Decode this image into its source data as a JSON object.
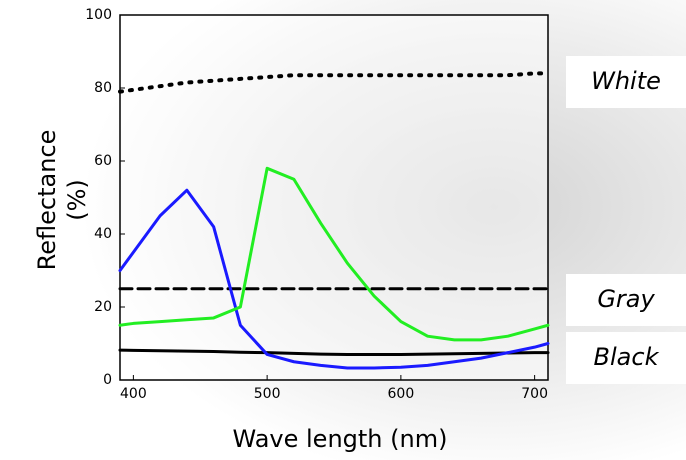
{
  "chart_data": {
    "type": "line",
    "y_label": [
      "Reflectance",
      "(%)"
    ],
    "x_label": "Wave length (nm)",
    "x": [
      390,
      400,
      420,
      440,
      460,
      480,
      500,
      520,
      540,
      560,
      580,
      600,
      620,
      640,
      660,
      680,
      700,
      710
    ],
    "series": [
      {
        "name": "White",
        "color": "#000000",
        "style": "dotted",
        "values": [
          79,
          79.5,
          80.5,
          81.5,
          82,
          82.5,
          83,
          83.5,
          83.5,
          83.5,
          83.5,
          83.5,
          83.5,
          83.5,
          83.5,
          83.5,
          84,
          84
        ]
      },
      {
        "name": "Gray",
        "color": "#000000",
        "style": "dashed",
        "values": [
          25,
          25,
          25,
          25,
          25,
          25,
          25,
          25,
          25,
          25,
          25,
          25,
          25,
          25,
          25,
          25,
          25,
          25
        ]
      },
      {
        "name": "Black",
        "color": "#000000",
        "style": "solid",
        "values": [
          8.2,
          8.1,
          8,
          7.9,
          7.8,
          7.6,
          7.5,
          7.3,
          7.1,
          7,
          7,
          7,
          7.1,
          7.2,
          7.3,
          7.4,
          7.5,
          7.5
        ]
      },
      {
        "color": "#1a1aff",
        "style": "solid",
        "values": [
          30,
          35,
          45,
          52,
          42,
          15,
          7,
          5,
          4,
          3.3,
          3.3,
          3.5,
          4,
          5,
          6,
          7.5,
          9,
          10
        ]
      },
      {
        "color": "#22ee22",
        "style": "solid",
        "values": [
          15,
          15.5,
          16,
          16.5,
          17,
          20,
          58,
          55,
          43,
          32,
          23,
          16,
          12,
          11,
          11,
          12,
          14,
          15
        ]
      }
    ],
    "xlim": [
      390,
      710
    ],
    "ylim": [
      0,
      100
    ],
    "xticks": [
      400,
      500,
      600,
      700
    ],
    "yticks": [
      0,
      20,
      40,
      60,
      80,
      100
    ]
  }
}
